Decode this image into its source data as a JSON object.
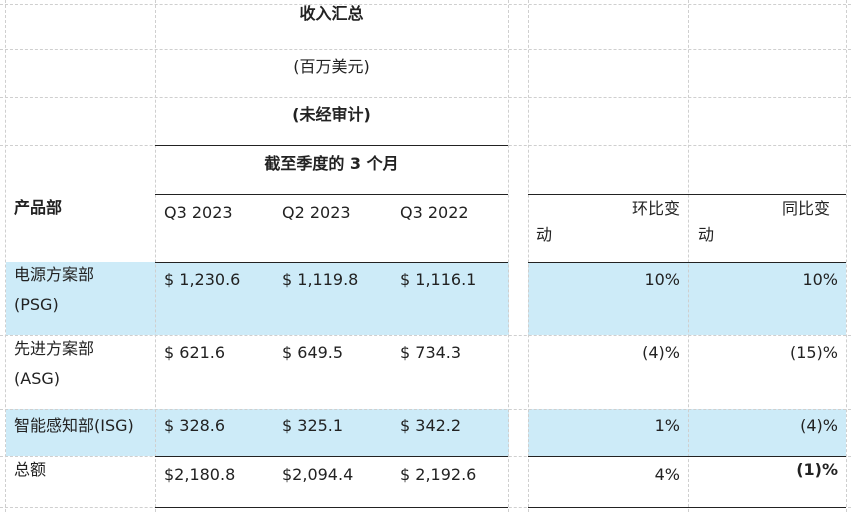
{
  "header": {
    "title": "收入汇总",
    "unit": "(百万美元)",
    "audit": "(未经审计)",
    "period": "截至季度的 3  个月"
  },
  "columns": {
    "segment": "产品部",
    "q3_2023": "Q3 2023",
    "q2_2023": "Q2 2023",
    "q3_2022": "Q3 2022",
    "qoq_line1": "环比变",
    "qoq_line2": "动",
    "yoy_line1": "同比变",
    "yoy_line2": "动"
  },
  "rows": [
    {
      "name_line1": "电源方案部",
      "name_line2": "(PSG)",
      "q3_2023": "$ 1,230.6",
      "q2_2023": "$ 1,119.8",
      "q3_2022": "$ 1,116.1",
      "qoq": "10%",
      "yoy": "10%"
    },
    {
      "name_line1": "先进方案部",
      "name_line2": "(ASG)",
      "q3_2023": "$ 621.6",
      "q2_2023": "$ 649.5",
      "q3_2022": "$ 734.3",
      "qoq": "(4)%",
      "yoy": "(15)%"
    },
    {
      "name_line1": "智能感知部(ISG)",
      "q3_2023": "$ 328.6",
      "q2_2023": "$ 325.1",
      "q3_2022": "$ 342.2",
      "qoq": "1%",
      "yoy": "(4)%"
    },
    {
      "name_line1": "总额",
      "q3_2023": "$2,180.8",
      "q2_2023": "$2,094.4",
      "q3_2022": "$ 2,192.6",
      "qoq": "4%",
      "yoy": "(1)%"
    }
  ],
  "colors": {
    "highlight": "#cdebf8",
    "gridline": "#cfcfcf",
    "rule": "#222222"
  }
}
